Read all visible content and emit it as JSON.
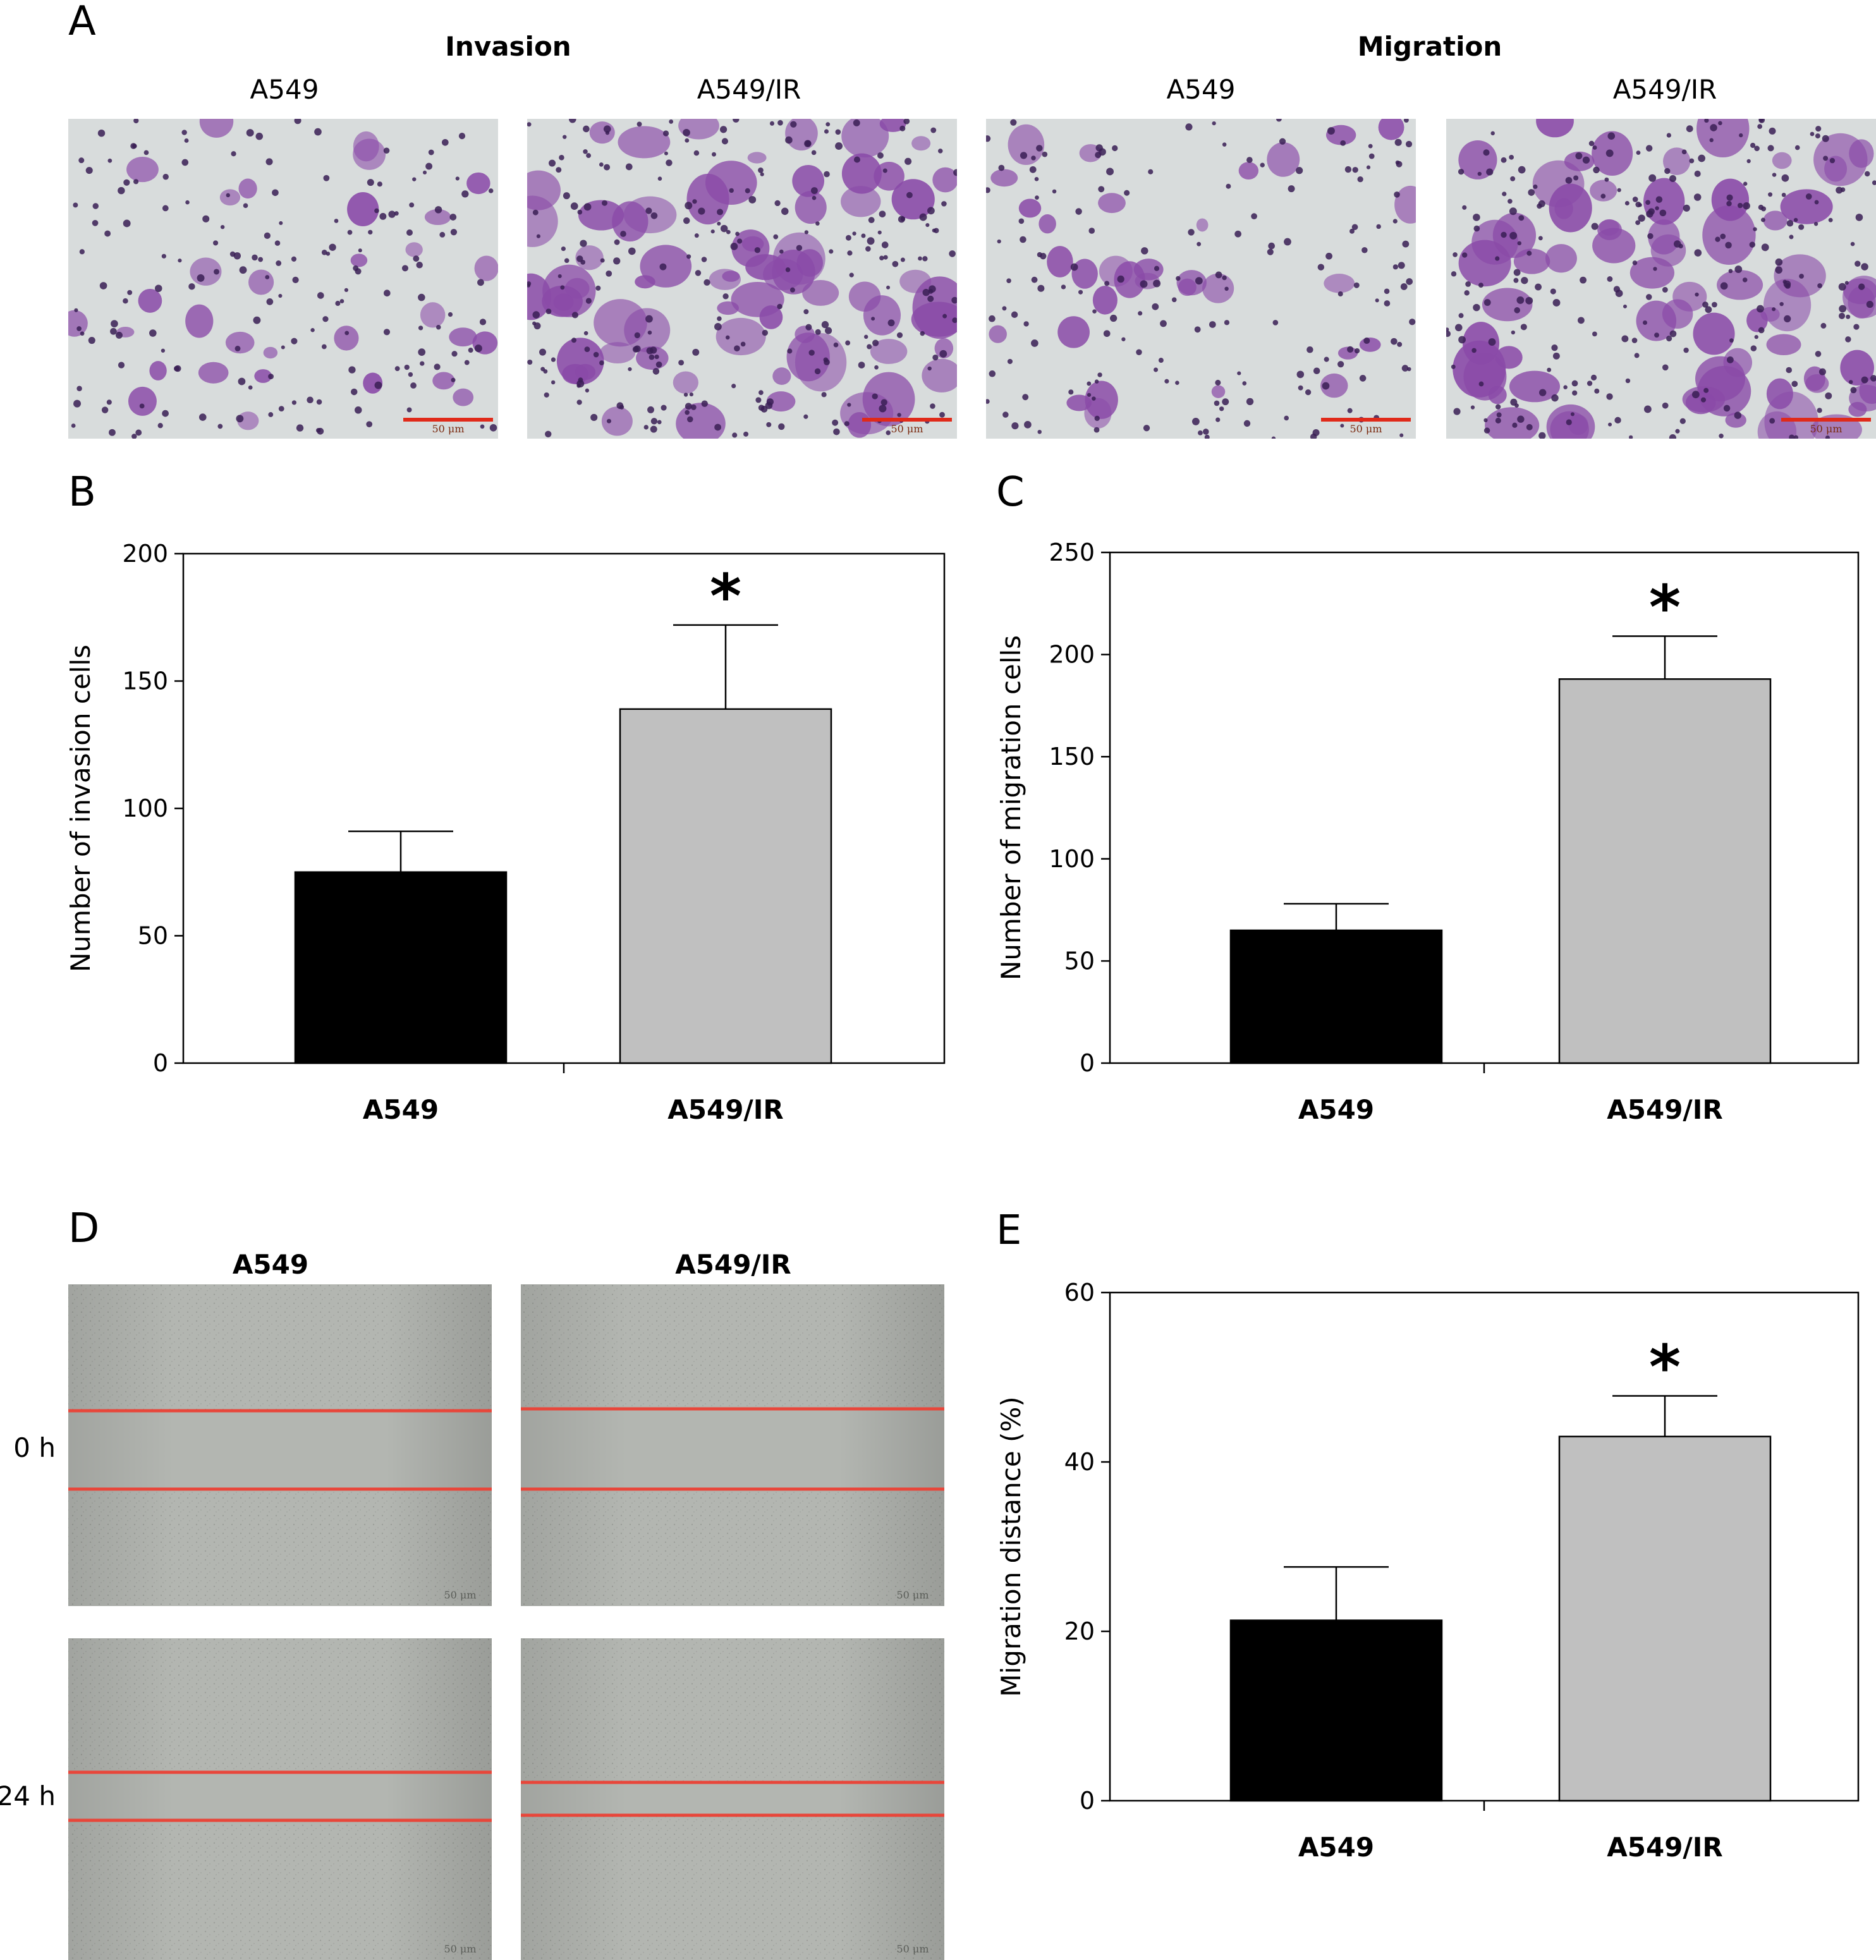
{
  "panel_a": {
    "letter": "A",
    "groups": [
      {
        "title": "Invasion",
        "columns": [
          "A549",
          "A549/IR"
        ]
      },
      {
        "title": "Migration",
        "columns": [
          "A549",
          "A549/IR"
        ]
      }
    ],
    "scale_bar_label": "50 μm",
    "colors": {
      "background": "#d8dcdc",
      "cell": "#8a4aa8",
      "cell_dark": "#3a1f55",
      "scale_bar": "#e02a1a"
    }
  },
  "panel_d": {
    "letter": "D",
    "columns": [
      "A549",
      "A549/IR"
    ],
    "rows": [
      "0 h",
      "24 h"
    ],
    "scale_bar_label": "50 μm",
    "colors": {
      "background": "#b3b6b1",
      "scratch_line": "#e8463a"
    }
  },
  "chart_data": [
    {
      "panel": "B",
      "type": "bar",
      "categories": [
        "A549",
        "A549/IR"
      ],
      "values": [
        75,
        139
      ],
      "errors": [
        16,
        33
      ],
      "ylabel": "Number of invasion cells",
      "xlabel": "",
      "ylim": [
        0,
        200
      ],
      "yticks": [
        0,
        50,
        100,
        150,
        200
      ],
      "annotations": [
        {
          "category": "A549/IR",
          "text": "*"
        }
      ],
      "colors": [
        "#000000",
        "#c0c0c0"
      ]
    },
    {
      "panel": "C",
      "type": "bar",
      "categories": [
        "A549",
        "A549/IR"
      ],
      "values": [
        65,
        188
      ],
      "errors": [
        13,
        21
      ],
      "ylabel": "Number of migration cells",
      "xlabel": "",
      "ylim": [
        0,
        250
      ],
      "yticks": [
        0,
        50,
        100,
        150,
        200,
        250
      ],
      "annotations": [
        {
          "category": "A549/IR",
          "text": "*"
        }
      ],
      "colors": [
        "#000000",
        "#c0c0c0"
      ]
    },
    {
      "panel": "E",
      "type": "bar",
      "categories": [
        "A549",
        "A549/IR"
      ],
      "values": [
        21.3,
        43
      ],
      "errors": [
        6.3,
        4.8
      ],
      "ylabel": "Migration distance (%)",
      "xlabel": "",
      "ylim": [
        0,
        60
      ],
      "yticks": [
        0,
        20,
        40,
        60
      ],
      "annotations": [
        {
          "category": "A549/IR",
          "text": "*"
        }
      ],
      "colors": [
        "#000000",
        "#c0c0c0"
      ]
    }
  ]
}
